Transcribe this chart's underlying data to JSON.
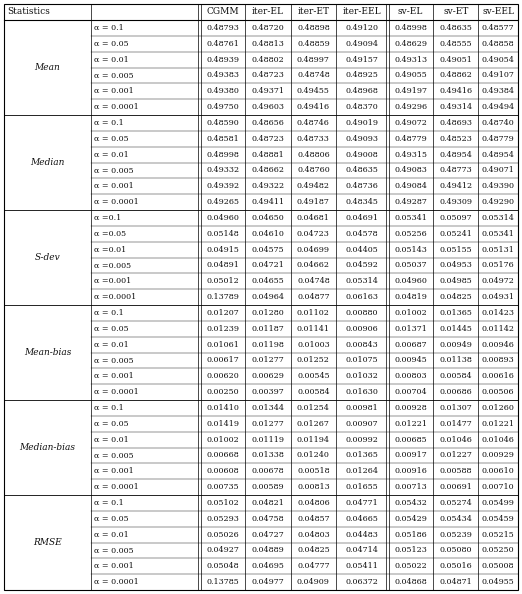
{
  "columns": [
    "Statistics",
    "",
    "CGMM",
    "iter-EL",
    "iter-ET",
    "iter-EEL",
    "sv-EL",
    "sv-ET",
    "sv-EEL"
  ],
  "row_groups": [
    "Mean",
    "Median",
    "S-dev",
    "Mean-bias",
    "Median-bias",
    "RMSE"
  ],
  "alpha_values": [
    "= 0.1",
    "= 0.05",
    "= 0.01",
    "= 0.005",
    "= 0.001",
    "= 0.0001"
  ],
  "sdev_alpha_values": [
    "=0.1",
    "=0.05",
    "=0.01",
    "=0.005",
    "=0.001",
    "=0.0001"
  ],
  "data": {
    "Mean": [
      [
        0.48793,
        0.4872,
        0.48898,
        0.4912,
        0.48998,
        0.48635,
        0.48577
      ],
      [
        0.48761,
        0.48813,
        0.48859,
        0.49094,
        0.48629,
        0.48555,
        0.48858
      ],
      [
        0.48939,
        0.48802,
        0.48997,
        0.49157,
        0.49313,
        0.49051,
        0.49054
      ],
      [
        0.49383,
        0.48723,
        0.48748,
        0.48925,
        0.49055,
        0.48862,
        0.49107
      ],
      [
        0.4938,
        0.49371,
        0.49455,
        0.48968,
        0.49197,
        0.49416,
        0.49384
      ],
      [
        0.4975,
        0.49603,
        0.49416,
        0.4837,
        0.49296,
        0.49314,
        0.49494
      ]
    ],
    "Median": [
      [
        0.4859,
        0.48656,
        0.48746,
        0.49019,
        0.49072,
        0.48693,
        0.4874
      ],
      [
        0.48581,
        0.48723,
        0.48733,
        0.49093,
        0.48779,
        0.48523,
        0.48779
      ],
      [
        0.48998,
        0.48881,
        0.48806,
        0.49008,
        0.49315,
        0.48954,
        0.48954
      ],
      [
        0.49332,
        0.48662,
        0.4876,
        0.48635,
        0.49083,
        0.48773,
        0.49071
      ],
      [
        0.49392,
        0.49322,
        0.49482,
        0.48736,
        0.49084,
        0.49412,
        0.4939
      ],
      [
        0.49265,
        0.49411,
        0.49187,
        0.48345,
        0.49287,
        0.49309,
        0.4929
      ]
    ],
    "S-dev": [
      [
        0.0496,
        0.0465,
        0.04681,
        0.04691,
        0.05341,
        0.05097,
        0.05314
      ],
      [
        0.05148,
        0.0461,
        0.04723,
        0.04578,
        0.05256,
        0.05241,
        0.05341
      ],
      [
        0.04915,
        0.04575,
        0.04699,
        0.04405,
        0.05143,
        0.05155,
        0.05131
      ],
      [
        0.04891,
        0.04721,
        0.04662,
        0.04592,
        0.05037,
        0.04953,
        0.05176
      ],
      [
        0.05012,
        0.04655,
        0.04748,
        0.05314,
        0.0496,
        0.04985,
        0.04972
      ],
      [
        0.13789,
        0.04964,
        0.04877,
        0.06163,
        0.04819,
        0.04825,
        0.04931
      ]
    ],
    "Mean-bias": [
      [
        0.01207,
        0.0128,
        0.01102,
        0.0088,
        0.01002,
        0.01365,
        0.01423
      ],
      [
        0.01239,
        0.01187,
        0.01141,
        0.00906,
        0.01371,
        0.01445,
        0.01142
      ],
      [
        0.01061,
        0.01198,
        0.01003,
        0.00843,
        0.00687,
        0.00949,
        0.00946
      ],
      [
        0.00617,
        0.01277,
        0.01252,
        0.01075,
        0.00945,
        0.01138,
        0.00893
      ],
      [
        0.0062,
        0.00629,
        0.00545,
        0.01032,
        0.00803,
        0.00584,
        0.00616
      ],
      [
        0.0025,
        0.00397,
        0.00584,
        0.0163,
        0.00704,
        0.00686,
        0.00506
      ]
    ],
    "Median-bias": [
      [
        0.0141,
        0.01344,
        0.01254,
        0.00981,
        0.00928,
        0.01307,
        0.0126
      ],
      [
        0.01419,
        0.01277,
        0.01267,
        0.00907,
        0.01221,
        0.01477,
        0.01221
      ],
      [
        0.01002,
        0.01119,
        0.01194,
        0.00992,
        0.00685,
        0.01046,
        0.01046
      ],
      [
        0.00668,
        0.01338,
        0.0124,
        0.01365,
        0.00917,
        0.01227,
        0.00929
      ],
      [
        0.00608,
        0.00678,
        0.00518,
        0.01264,
        0.00916,
        0.00588,
        0.0061
      ],
      [
        0.00735,
        0.00589,
        0.00813,
        0.01655,
        0.00713,
        0.00691,
        0.0071
      ]
    ],
    "RMSE": [
      [
        0.05102,
        0.04821,
        0.04806,
        0.04771,
        0.05432,
        0.05274,
        0.05499
      ],
      [
        0.05293,
        0.04758,
        0.04857,
        0.04665,
        0.05429,
        0.05434,
        0.05459
      ],
      [
        0.05026,
        0.04727,
        0.04803,
        0.04483,
        0.05186,
        0.05239,
        0.05215
      ],
      [
        0.04927,
        0.04889,
        0.04825,
        0.04714,
        0.05123,
        0.0508,
        0.0525
      ],
      [
        0.05048,
        0.04695,
        0.04777,
        0.05411,
        0.05022,
        0.05016,
        0.05008
      ],
      [
        0.13785,
        0.04977,
        0.04909,
        0.06372,
        0.04868,
        0.04871,
        0.04955
      ]
    ]
  },
  "text_color": "#111111",
  "font_size": 5.8,
  "header_font_size": 6.5,
  "group_font_size": 6.5
}
